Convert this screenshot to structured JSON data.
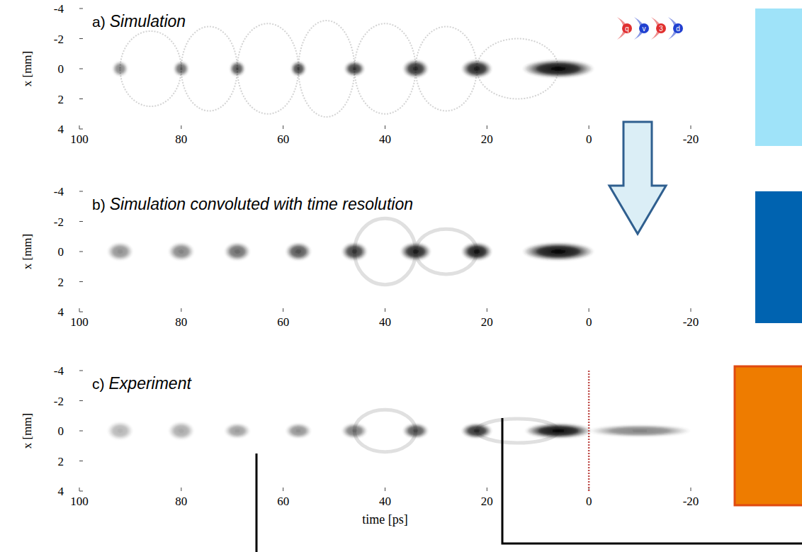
{
  "chart_data": [
    {
      "type": "density",
      "label": "a)",
      "title": "Simulation",
      "ylabel": "x [mm]",
      "logo": [
        "q",
        "v",
        "3",
        "d"
      ],
      "xlim": [
        100,
        -20
      ],
      "ylim": [
        -4,
        4
      ],
      "xticks": [
        100,
        80,
        60,
        40,
        20,
        0,
        -20
      ],
      "yticks": [
        -4,
        -2,
        0,
        2,
        4
      ],
      "x": [
        92,
        80,
        69,
        57,
        46,
        34,
        22,
        6
      ],
      "durations": [
        3,
        3,
        3,
        3,
        4,
        5,
        6,
        14
      ],
      "sizes": [
        0.5,
        0.5,
        0.5,
        0.5,
        0.5,
        0.6,
        0.6,
        0.6
      ],
      "intensity": [
        0.5,
        0.6,
        0.7,
        0.75,
        0.8,
        0.85,
        0.9,
        1
      ],
      "halo": [
        2.5,
        2.8,
        3,
        3.2,
        3,
        2.8,
        2,
        0
      ]
    },
    {
      "type": "density",
      "label": "b)",
      "title": "Simulation convoluted with time resolution",
      "ylabel": "x [mm]",
      "xlim": [
        100,
        -20
      ],
      "ylim": [
        -4,
        4
      ],
      "xticks": [
        100,
        80,
        60,
        40,
        20,
        0,
        -20
      ],
      "yticks": [
        -4,
        -2,
        0,
        2,
        4
      ],
      "x": [
        92,
        80,
        69,
        57,
        46,
        34,
        22,
        6
      ],
      "durations": [
        5,
        5,
        5,
        5,
        5,
        6,
        6,
        14
      ],
      "sizes": [
        0.6,
        0.6,
        0.6,
        0.6,
        0.6,
        0.6,
        0.6,
        0.6
      ],
      "intensity": [
        0.45,
        0.5,
        0.6,
        0.7,
        0.8,
        0.9,
        0.95,
        1
      ],
      "halo": [
        0,
        0,
        0,
        0,
        2.2,
        1.5,
        0,
        0
      ]
    },
    {
      "type": "density",
      "label": "c)",
      "title": "Experiment",
      "ylabel": "x [mm]",
      "xlabel": "time [ps]",
      "xlim": [
        100,
        -20
      ],
      "ylim": [
        -4,
        4
      ],
      "xticks": [
        100,
        80,
        60,
        40,
        20,
        0,
        -20
      ],
      "yticks": [
        -4,
        -2,
        0,
        2,
        4
      ],
      "vline": 0,
      "x": [
        92,
        80,
        69,
        57,
        46,
        34,
        22,
        6,
        -10
      ],
      "durations": [
        5,
        5,
        5,
        5,
        5,
        5,
        6,
        13,
        20
      ],
      "sizes": [
        0.6,
        0.6,
        0.5,
        0.5,
        0.5,
        0.5,
        0.5,
        0.5,
        0.4
      ],
      "intensity": [
        0.3,
        0.35,
        0.4,
        0.45,
        0.55,
        0.7,
        0.85,
        1,
        0.5
      ],
      "halo": [
        0,
        0,
        0,
        0,
        1.4,
        0,
        0.8,
        0,
        0
      ]
    }
  ]
}
